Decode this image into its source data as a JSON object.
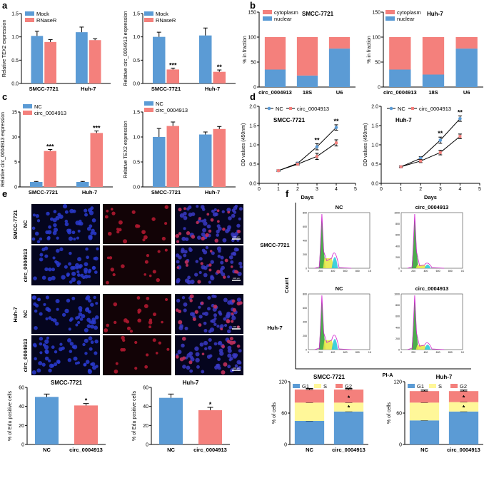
{
  "panel_labels": {
    "a": "a",
    "b": "b",
    "c": "c",
    "d": "d",
    "e": "e",
    "f": "f"
  },
  "colors": {
    "blue": "#5b9bd5",
    "red": "#f4807c",
    "yellow": "#fff799",
    "black": "#000000"
  },
  "chart_data": [
    {
      "id": "a1",
      "type": "bar",
      "categories": [
        "SMCC-7721",
        "Huh-7"
      ],
      "series": [
        {
          "name": "Mock",
          "values": [
            1.02,
            1.1
          ]
        },
        {
          "name": "RNaseR",
          "values": [
            0.89,
            0.93
          ]
        }
      ],
      "errors": [
        [
          0.1,
          0.11
        ],
        [
          0.05,
          0.03
        ]
      ],
      "ylabel": "Relative TEX2 expression",
      "ylim": [
        0,
        1.5
      ],
      "yticks": [
        0,
        0.5,
        1.0,
        1.5
      ],
      "stars": [
        "",
        ""
      ]
    },
    {
      "id": "a2",
      "type": "bar",
      "categories": [
        "SMCC-7721",
        "Huh-7"
      ],
      "series": [
        {
          "name": "Mock",
          "values": [
            1.0,
            1.03
          ]
        },
        {
          "name": "RNaseR",
          "values": [
            0.3,
            0.25
          ]
        }
      ],
      "errors": [
        [
          0.1,
          0.16
        ],
        [
          0.03,
          0.04
        ]
      ],
      "ylabel": "Relative circ_0004913 expression",
      "ylim": [
        0,
        1.5
      ],
      "yticks": [
        0,
        0.5,
        1.0,
        1.5
      ],
      "stars": [
        "***",
        "**"
      ]
    },
    {
      "id": "b1",
      "type": "bar",
      "stacked": true,
      "title": "SMCC-7721",
      "categories": [
        "circ_0004913",
        "18S",
        "U6"
      ],
      "series": [
        {
          "name": "nuclear",
          "values": [
            35,
            23,
            77
          ]
        },
        {
          "name": "cytoplasm",
          "values": [
            65,
            77,
            23
          ]
        }
      ],
      "ylabel": "% in fraction",
      "ylim": [
        0,
        150
      ],
      "yticks": [
        0,
        50,
        100,
        150
      ]
    },
    {
      "id": "b2",
      "type": "bar",
      "stacked": true,
      "title": "Huh-7",
      "categories": [
        "circ_0004913",
        "18S",
        "U6"
      ],
      "series": [
        {
          "name": "nuclear",
          "values": [
            35,
            25,
            77
          ]
        },
        {
          "name": "cytoplasm",
          "values": [
            65,
            75,
            23
          ]
        }
      ],
      "ylabel": "% in fraction",
      "ylim": [
        0,
        150
      ],
      "yticks": [
        0,
        50,
        100,
        150
      ]
    },
    {
      "id": "c1",
      "type": "bar",
      "categories": [
        "SMCC-7721",
        "Huh-7"
      ],
      "series": [
        {
          "name": "NC",
          "values": [
            1.0,
            1.0
          ]
        },
        {
          "name": "circ_0004913",
          "values": [
            7.2,
            10.8
          ]
        }
      ],
      "errors": [
        [
          0.1,
          0.1
        ],
        [
          0.3,
          0.4
        ]
      ],
      "ylabel": "Relative circ_0004913 expression",
      "ylim": [
        0,
        15
      ],
      "yticks": [
        0,
        5,
        10,
        15
      ],
      "stars": [
        "***",
        "***"
      ]
    },
    {
      "id": "c2",
      "type": "bar",
      "categories": [
        "SMCC-7721",
        "Huh-7"
      ],
      "series": [
        {
          "name": "NC",
          "values": [
            1.0,
            1.05
          ]
        },
        {
          "name": "circ_0004913",
          "values": [
            1.22,
            1.16
          ]
        }
      ],
      "errors": [
        [
          0.17,
          0.05
        ],
        [
          0.08,
          0.05
        ]
      ],
      "ylabel": "Relative TEX2 expression",
      "ylim": [
        0,
        1.5
      ],
      "yticks": [
        0,
        0.5,
        1.0,
        1.5
      ],
      "stars": [
        "",
        ""
      ]
    },
    {
      "id": "d1",
      "type": "line",
      "title": "SMCC-7721",
      "x": [
        1,
        2,
        3,
        4
      ],
      "series": [
        {
          "name": "NC",
          "values": [
            0.33,
            0.52,
            0.95,
            1.45
          ]
        },
        {
          "name": "circ_0004913",
          "values": [
            0.33,
            0.5,
            0.7,
            1.05
          ]
        }
      ],
      "errors": [
        [
          0.02,
          0.03,
          0.08,
          0.07
        ],
        [
          0.02,
          0.03,
          0.08,
          0.08
        ]
      ],
      "xlabel": "Days",
      "ylabel": "OD values (450nm)",
      "xlim": [
        0,
        5
      ],
      "ylim": [
        0,
        2.0
      ],
      "xticks": [
        0,
        1,
        2,
        3,
        4,
        5
      ],
      "yticks": [
        0,
        0.5,
        1.0,
        1.5,
        2.0
      ],
      "stars": [
        "",
        "",
        "**",
        "**"
      ]
    },
    {
      "id": "d2",
      "type": "line",
      "title": "Huh-7",
      "x": [
        1,
        2,
        3,
        4
      ],
      "series": [
        {
          "name": "NC",
          "values": [
            0.43,
            0.65,
            1.12,
            1.68
          ]
        },
        {
          "name": "circ_0004913",
          "values": [
            0.43,
            0.58,
            0.8,
            1.22
          ]
        }
      ],
      "errors": [
        [
          0.02,
          0.04,
          0.08,
          0.07
        ],
        [
          0.02,
          0.04,
          0.06,
          0.06
        ]
      ],
      "xlabel": "Days",
      "ylabel": "OD values (450nm)",
      "xlim": [
        0,
        5
      ],
      "ylim": [
        0,
        2.0
      ],
      "xticks": [
        0,
        1,
        2,
        3,
        4,
        5
      ],
      "yticks": [
        0,
        0.5,
        1.0,
        1.5,
        2.0
      ],
      "stars": [
        "",
        "",
        "**",
        "**"
      ]
    },
    {
      "id": "e1",
      "type": "bar",
      "title": "SMCC-7721",
      "categories": [
        "NC",
        "circ_0004913"
      ],
      "series": [
        {
          "name": "% of Edu positive cells",
          "values": [
            50,
            41
          ]
        }
      ],
      "errors": [
        [
          3,
          2
        ]
      ],
      "ylabel": "% of Edu positive cells",
      "ylim": [
        0,
        60
      ],
      "yticks": [
        0,
        20,
        40,
        60
      ],
      "stars": [
        "",
        "*"
      ]
    },
    {
      "id": "e2",
      "type": "bar",
      "title": "Huh-7",
      "categories": [
        "NC",
        "circ_0004913"
      ],
      "series": [
        {
          "name": "% of Edu positive cells",
          "values": [
            49,
            36
          ]
        }
      ],
      "errors": [
        [
          4,
          3
        ]
      ],
      "ylabel": "% of Edu positive cells",
      "ylim": [
        0,
        60
      ],
      "yticks": [
        0,
        20,
        40,
        60
      ],
      "stars": [
        "",
        "*"
      ]
    },
    {
      "id": "f1",
      "type": "bar",
      "stacked": true,
      "title": "SMCC-7721",
      "categories": [
        "NC",
        "circ_0004913"
      ],
      "series": [
        {
          "name": "G1",
          "values": [
            45,
            63
          ]
        },
        {
          "name": "S",
          "values": [
            35,
            17
          ]
        },
        {
          "name": "G2",
          "values": [
            25,
            25
          ]
        }
      ],
      "errors": [
        [
          2,
          2
        ],
        [
          3,
          3
        ],
        [
          2,
          2
        ]
      ],
      "ylabel": "% of cells",
      "ylim": [
        0,
        120
      ],
      "yticks": [
        0,
        60,
        120
      ],
      "stars": [
        "*",
        "*"
      ]
    },
    {
      "id": "f2",
      "type": "bar",
      "stacked": true,
      "title": "Huh-7",
      "categories": [
        "NC",
        "circ_0004913"
      ],
      "series": [
        {
          "name": "G1",
          "values": [
            46,
            63
          ]
        },
        {
          "name": "S",
          "values": [
            34,
            18
          ]
        },
        {
          "name": "G2",
          "values": [
            22,
            21
          ]
        }
      ],
      "errors": [
        [
          2,
          2
        ],
        [
          3,
          3
        ],
        [
          2,
          2
        ]
      ],
      "ylabel": "% of cells",
      "ylim": [
        0,
        120
      ],
      "yticks": [
        0,
        60,
        120
      ],
      "stars": [
        "*",
        "*"
      ]
    }
  ],
  "micrographs": {
    "row_labels": [
      "NC",
      "circ_0004913",
      "NC",
      "circ_0004913"
    ],
    "group_labels": [
      "SMCC-7721",
      "Huh-7"
    ],
    "scale_bar": "100 μm"
  },
  "flow": {
    "col_labels": [
      "NC",
      "circ_0004913"
    ],
    "row_labels": [
      "SMCC-7721",
      "Huh-7"
    ],
    "ylabel": "Count",
    "xlabel": "PI-A",
    "xticks": [
      "0",
      "200",
      "400",
      "600",
      "800",
      "1K"
    ],
    "yticks_nc": [
      "0",
      "200",
      "400",
      "600",
      "800"
    ],
    "yticks_circ": [
      "0",
      "200",
      "400",
      "600",
      "800",
      "1000"
    ]
  }
}
